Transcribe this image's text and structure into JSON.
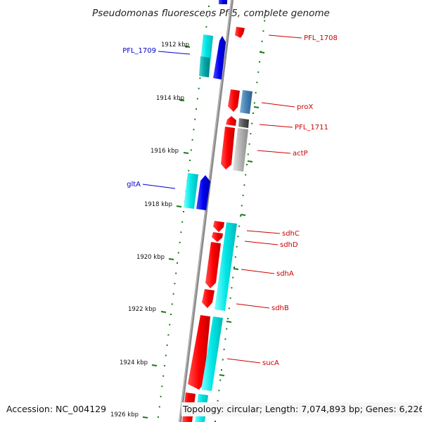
{
  "title": "Pseudomonas fluorescens Pf-5, complete genome",
  "footer": {
    "accession": "Accession: NC_004129",
    "topology": "Topology: circular; Length: 7,074,893 bp; Genes: 6,226"
  },
  "colors": {
    "forward_gene": "#ff0000",
    "reverse_gene": "#0000ee",
    "cyan_track": "#00e6e6",
    "teal_track": "#00b3b3",
    "steel_track": "#4682b4",
    "gray_track": "#b4b4b4",
    "backbone": "#888888",
    "tick": "#1a7a1a",
    "forward_label": "#cc0000",
    "reverse_label": "#0000cc"
  },
  "ticks": [
    {
      "label": "1912 kbp"
    },
    {
      "label": "1914 kbp"
    },
    {
      "label": "1916 kbp"
    },
    {
      "label": "1918 kbp"
    },
    {
      "label": "1920 kbp"
    },
    {
      "label": "1922 kbp"
    },
    {
      "label": "1924 kbp"
    },
    {
      "label": "1926 kbp"
    }
  ],
  "gene_labels": [
    {
      "name": "PFL_1708",
      "strand": "forward"
    },
    {
      "name": "PFL_1709",
      "strand": "reverse"
    },
    {
      "name": "proX",
      "strand": "forward"
    },
    {
      "name": "PFL_1711",
      "strand": "forward"
    },
    {
      "name": "actP",
      "strand": "forward"
    },
    {
      "name": "gltA",
      "strand": "reverse"
    },
    {
      "name": "sdhC",
      "strand": "forward"
    },
    {
      "name": "sdhD",
      "strand": "forward"
    },
    {
      "name": "sdhA",
      "strand": "forward"
    },
    {
      "name": "sdhB",
      "strand": "forward"
    },
    {
      "name": "sucA",
      "strand": "forward"
    }
  ]
}
